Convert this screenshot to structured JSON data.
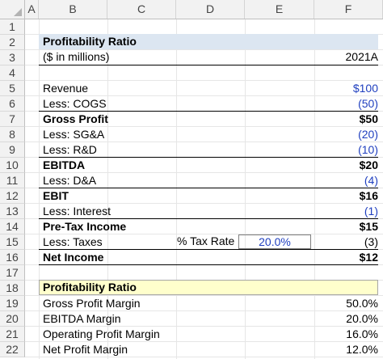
{
  "columns": [
    "A",
    "B",
    "C",
    "D",
    "E",
    "F"
  ],
  "rows": [
    "1",
    "2",
    "3",
    "4",
    "5",
    "6",
    "7",
    "8",
    "9",
    "10",
    "11",
    "12",
    "13",
    "14",
    "15",
    "16",
    "17",
    "18",
    "19",
    "20",
    "21",
    "22"
  ],
  "section1": {
    "title": "Profitability Ratio",
    "units": "($ in millions)",
    "year": "2021A"
  },
  "income_statement": [
    {
      "label": "Revenue",
      "value": "$100",
      "bold": false,
      "input": true
    },
    {
      "label": "Less: COGS",
      "value": "(50)",
      "bold": false,
      "input": true
    },
    {
      "label": "Gross Profit",
      "value": "$50",
      "bold": true,
      "input": false
    },
    {
      "label": "Less: SG&A",
      "value": "(20)",
      "bold": false,
      "input": true
    },
    {
      "label": "Less: R&D",
      "value": "(10)",
      "bold": false,
      "input": true
    },
    {
      "label": "EBITDA",
      "value": "$20",
      "bold": true,
      "input": false
    },
    {
      "label": "Less: D&A",
      "value": "(4)",
      "bold": false,
      "input": true
    },
    {
      "label": "EBIT",
      "value": "$16",
      "bold": true,
      "input": false
    },
    {
      "label": "Less: Interest",
      "value": "(1)",
      "bold": false,
      "input": true
    },
    {
      "label": "Pre-Tax Income",
      "value": "$15",
      "bold": true,
      "input": false
    },
    {
      "label": "Less: Taxes",
      "value": "(3)",
      "bold": false,
      "input": false
    },
    {
      "label": "Net Income",
      "value": "$12",
      "bold": true,
      "input": false
    }
  ],
  "tax_rate": {
    "label": "% Tax Rate",
    "value": "20.0%"
  },
  "section2": {
    "title": "Profitability Ratio"
  },
  "ratios": [
    {
      "label": "Gross Profit Margin",
      "value": "50.0%"
    },
    {
      "label": "EBITDA Margin",
      "value": "20.0%"
    },
    {
      "label": "Operating Profit Margin",
      "value": "16.0%"
    },
    {
      "label": "Net Profit Margin",
      "value": "12.0%"
    }
  ],
  "colors": {
    "input_blue": "#1f3fbf",
    "header_band": "#dce6f1",
    "ratio_band": "#ffffcc"
  }
}
